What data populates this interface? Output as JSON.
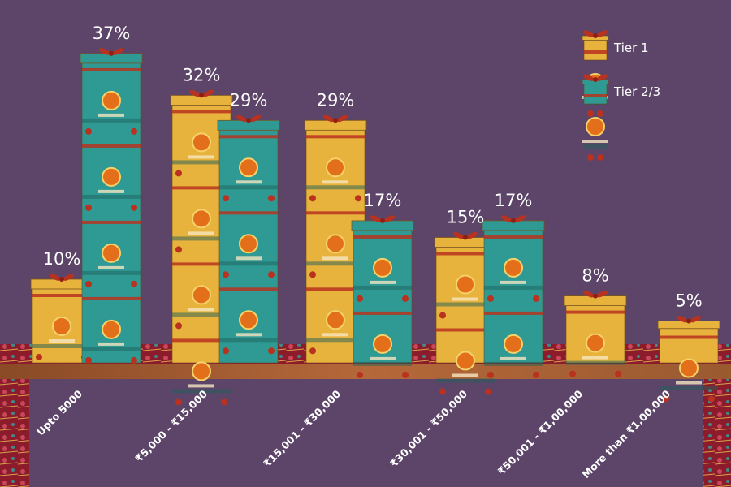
{
  "chart_data": {
    "type": "bar",
    "title": "",
    "xlabel": "",
    "ylabel": "",
    "ylim": [
      0,
      40
    ],
    "categories": [
      "Upto 5000",
      "₹5,000 - ₹15,000",
      "₹15,001 - ₹30,000",
      "₹30,001 - ₹50,000",
      "₹50,001 - ₹1,00,000",
      "More than ₹1,00,000"
    ],
    "series": [
      {
        "name": "Tier 1",
        "values": [
          10,
          32,
          29,
          15,
          8,
          5
        ],
        "labels": [
          "10%",
          "32%",
          "29%",
          "15%",
          "8%",
          "5%"
        ]
      },
      {
        "name": "Tier 2/3",
        "values": [
          37,
          29,
          17,
          17,
          null,
          null
        ],
        "labels": [
          "37%",
          "29%",
          "17%",
          "17%",
          "",
          ""
        ]
      }
    ],
    "legend": "top-right",
    "grid": false
  },
  "colors": {
    "background": "#5c4568",
    "tier1_box": "#e8b33c",
    "tier23_box": "#2f9a94",
    "ribbon": "#b8321f",
    "table": "#a0522d",
    "cloth": "#8c1c2c"
  }
}
